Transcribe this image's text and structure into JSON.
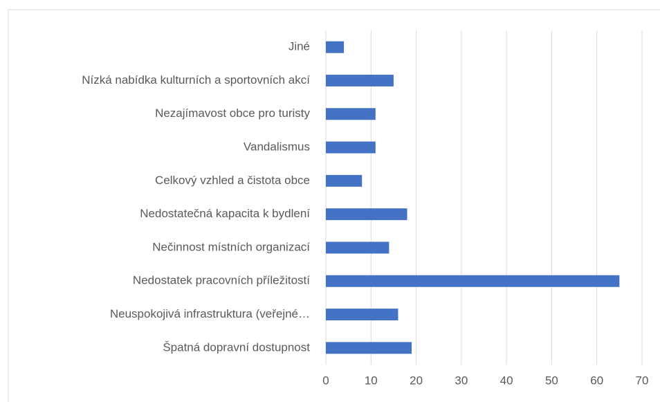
{
  "chart_data": {
    "type": "bar",
    "orientation": "horizontal",
    "categories": [
      "Jiné",
      "Nízká nabídka kulturních a sportovních akcí",
      "Nezajímavost obce pro turisty",
      "Vandalismus",
      "Celkový vzhled a čistota obce",
      "Nedostatečná kapacita k bydlení",
      "Nečinnost místních organizací",
      "Nedostatek pracovních příležitostí",
      "Neuspokojivá infrastruktura (veřejné…",
      "Špatná dopravní dostupnost"
    ],
    "values": [
      4,
      15,
      11,
      11,
      8,
      18,
      14,
      65,
      16,
      19
    ],
    "color": "#4472c4",
    "xlim": [
      0,
      70
    ],
    "xticks": [
      0,
      10,
      20,
      30,
      40,
      50,
      60,
      70
    ],
    "grid": true
  }
}
